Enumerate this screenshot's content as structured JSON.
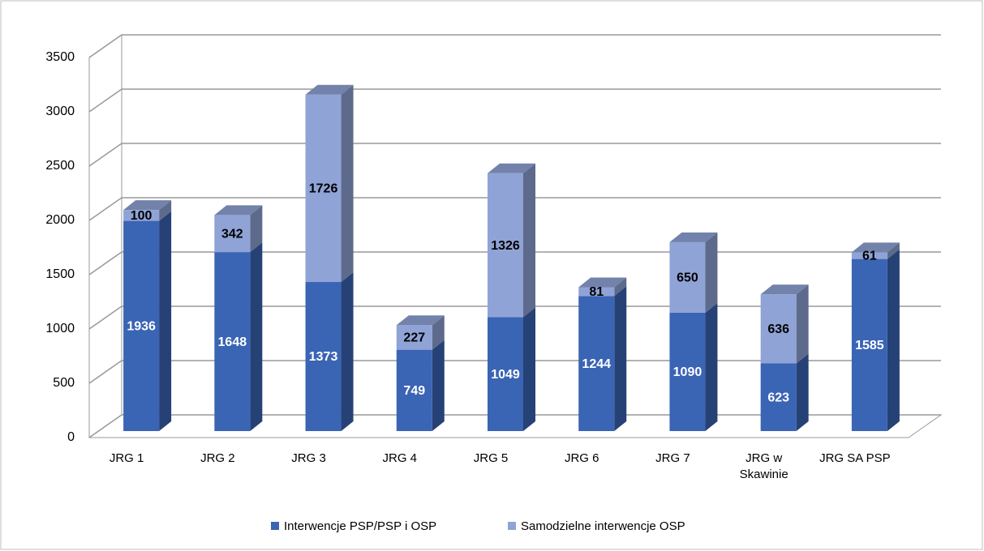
{
  "chart_data": {
    "type": "bar3d_stacked",
    "categories": [
      "JRG 1",
      "JRG 2",
      "JRG 3",
      "JRG 4",
      "JRG 5",
      "JRG 6",
      "JRG 7",
      "JRG w Skawinie",
      "JRG SA PSP"
    ],
    "series": [
      {
        "name": "Interwencje PSP/PSP i OSP",
        "color": "#3a64b4",
        "values": [
          1936,
          1648,
          1373,
          749,
          1049,
          1244,
          1090,
          623,
          1585
        ]
      },
      {
        "name": "Samodzielne interwencje OSP",
        "color": "#8fa3d6",
        "values": [
          100,
          342,
          1726,
          227,
          1326,
          81,
          650,
          636,
          61
        ]
      }
    ],
    "ylim": [
      0,
      3500
    ],
    "yticks": [
      0,
      500,
      1000,
      1500,
      2000,
      2500,
      3000,
      3500
    ],
    "grid": true,
    "legend": "bottom"
  }
}
